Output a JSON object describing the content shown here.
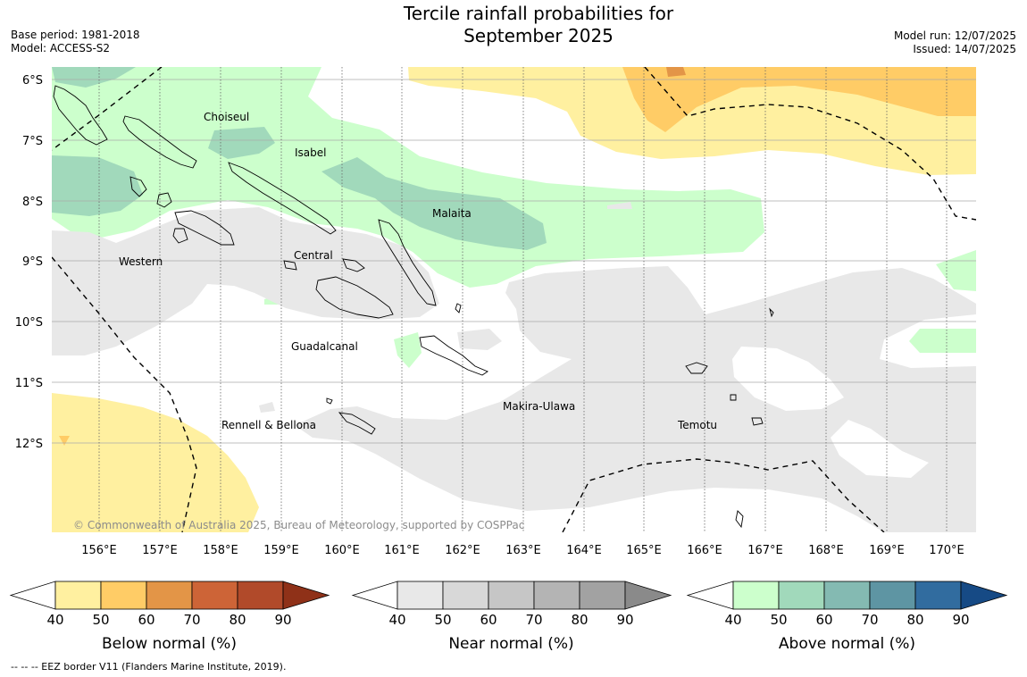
{
  "header": {
    "title_line1": "Tercile rainfall probabilities for",
    "title_line2": "September 2025",
    "base_period": "Base period: 1981-2018",
    "model": "Model: ACCESS-S2",
    "model_run": "Model run: 12/07/2025",
    "issued": "Issued: 14/07/2025"
  },
  "map": {
    "longitude_ticks": [
      "156°E",
      "157°E",
      "158°E",
      "159°E",
      "160°E",
      "161°E",
      "162°E",
      "163°E",
      "164°E",
      "165°E",
      "166°E",
      "167°E",
      "168°E",
      "169°E",
      "170°E"
    ],
    "latitude_ticks": [
      "6°S",
      "7°S",
      "8°S",
      "9°S",
      "10°S",
      "11°S",
      "12°S"
    ],
    "places": {
      "choiseul": "Choiseul",
      "isabel": "Isabel",
      "malaita": "Malaita",
      "central": "Central",
      "western": "Western",
      "guadalcanal": "Guadalcanal",
      "makira": "Makira-Ulawa",
      "rennell": "Rennell & Bellona",
      "temotu": "Temotu"
    },
    "copyright": "© Commonwealth of Australia 2025, Bureau of Meteorology, supported by COSPPac"
  },
  "legend": {
    "below": {
      "title": "Below normal (%)",
      "ticks": [
        "40",
        "50",
        "60",
        "70",
        "80",
        "90"
      ],
      "colors": [
        "#ffffff",
        "#fff0a0",
        "#ffcc66",
        "#e39547",
        "#cd6437",
        "#b14a2a",
        "#8f3118"
      ]
    },
    "near": {
      "title": "Near normal (%)",
      "ticks": [
        "40",
        "50",
        "60",
        "70",
        "80",
        "90"
      ],
      "colors": [
        "#ffffff",
        "#e8e8e8",
        "#d8d8d8",
        "#c6c6c6",
        "#b4b4b4",
        "#a2a2a2",
        "#8a8a8a"
      ]
    },
    "above": {
      "title": "Above normal (%)",
      "ticks": [
        "40",
        "50",
        "60",
        "70",
        "80",
        "90"
      ],
      "colors": [
        "#ffffff",
        "#ccffcc",
        "#a1d9bb",
        "#84bab2",
        "#5e95a3",
        "#316c9f",
        "#164a85"
      ]
    }
  },
  "footnote": "--  --  -- EEZ border V11 (Flanders Marine Institute, 2019)."
}
